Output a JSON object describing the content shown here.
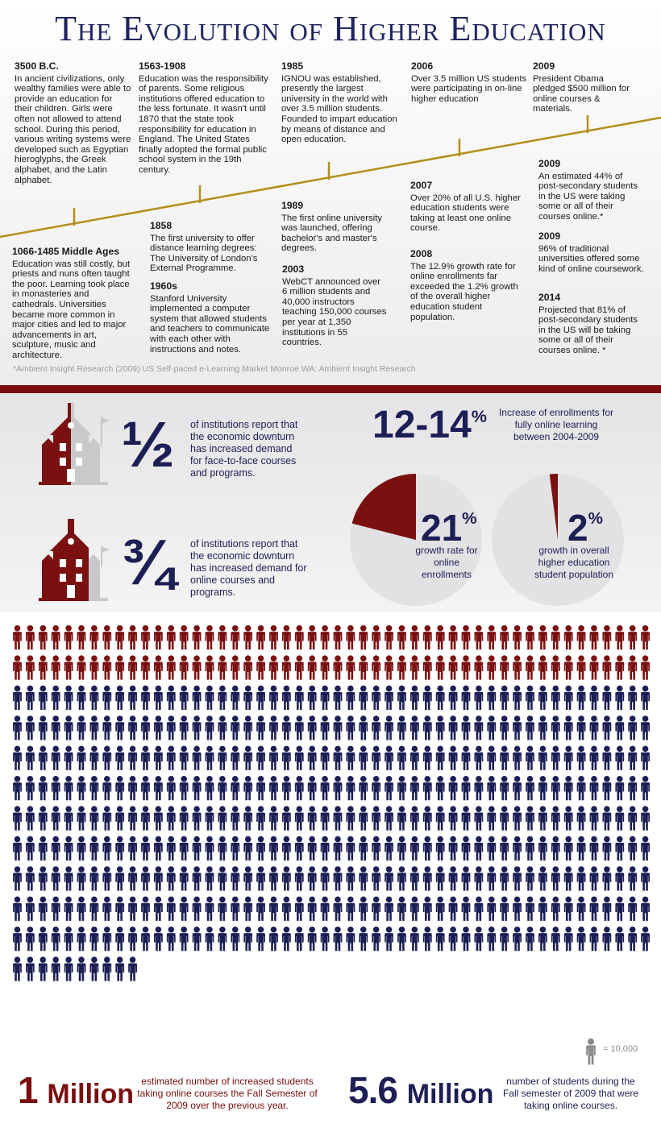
{
  "title": "The Evolution of Higher Education",
  "timeline": [
    {
      "year": "3500 B.C.",
      "text": "In ancient civilizations, only wealthy families were able to provide an education for their children.  Girls were often not allowed to attend school.  During this period, various writing systems were developed such as Egyptian hieroglyphs, the Greek alphabet, and the Latin alphabet."
    },
    {
      "year": "1563-1908",
      "text": "Education was the responsibility of parents.  Some religious institutions offered education to the less fortunate.  It wasn't until 1870 that the state took responsibility for education in England.  The United States finally adopted the formal public school system in the 19th century."
    },
    {
      "year": "1985",
      "text": "IGNOU was established, presently the largest university in the world with over 3.5 million students.  Founded to impart education by means of distance and open education."
    },
    {
      "year": "2006",
      "text": "Over 3.5 million US students were participating in on-line higher education"
    },
    {
      "year": "2009",
      "text": "President Obama pledged $500 million for online courses & materials."
    },
    {
      "year": "1066-1485 Middle Ages",
      "text": "Education was still costly, but priests and nuns often taught the poor. Learning took place in monasteries and cathedrals.  Universities became more common in major cities and led to major advancements in art, sculpture, music and architecture."
    },
    {
      "year": "1858",
      "text": "The first university to offer distance learning degrees: The University of London's External Programme."
    },
    {
      "year": "1960s",
      "text": "Stanford University implemented a computer system that allowed students and teachers to communicate with each other with instructions and notes."
    },
    {
      "year": "1989",
      "text": "The first online university was launched, offering bachelor's and master's degrees."
    },
    {
      "year": "2003",
      "text": "WebCT announced over 6 million students and 40,000 instructors teaching 150,000 courses per year at 1,350 institutions in 55 countries."
    },
    {
      "year": "2007",
      "text": "Over 20% of all U.S. higher education students were taking at least one online course."
    },
    {
      "year": "2008",
      "text": "The 12.9% growth rate for online enrollments far exceeded the 1.2% growth of the overall higher education student population."
    },
    {
      "year": "2009",
      "text": "An estimated 44% of post-secondary students in the US were taking some or all of their courses online.*"
    },
    {
      "year": "2009",
      "text": "96% of traditional universities offered some kind of online coursework."
    },
    {
      "year": "2014",
      "text": "Projected that 81% of post-secondary students in the US will be taking some or all of their courses online. *"
    }
  ],
  "footnote": "*Ambient Insight Research (2009) US Self-paced e-Learning Market Monroe WA: Ambient Insight Research",
  "stats": {
    "half": {
      "fraction": "½",
      "value": 0.5,
      "text": "of institutions report that the economic downturn has increased demand for face-to-face courses and programs."
    },
    "three_quarters": {
      "fraction": "¾",
      "value": 0.75,
      "text": "of institutions report that the economic downturn has increased demand for online courses and programs."
    },
    "enrollment_increase": {
      "value": "12-14",
      "unit": "%",
      "text": "Increase of enrollments for fully online learning between 2004-2009"
    },
    "online_growth": {
      "value": "21",
      "unit": "%",
      "fraction": 0.21,
      "text": "growth rate for online enrollments"
    },
    "overall_growth": {
      "value": "2",
      "unit": "%",
      "fraction": 0.02,
      "text": "growth in overall higher education student population"
    }
  },
  "people_chart": {
    "total_icons": 560,
    "red_icons": 100,
    "legend": "= 10,000",
    "colors": {
      "red": "#7a1010",
      "blue": "#1c1f55",
      "legend": "#8c8c8c"
    }
  },
  "bottom": {
    "left": {
      "number": "1",
      "unit": "Million",
      "text": "estimated number of increased students taking online courses the Fall Semester of 2009 over the previous year."
    },
    "right": {
      "number": "5.6",
      "unit": "Million",
      "text": "number of students during the Fall semester of 2009 that were taking online courses."
    }
  },
  "colors": {
    "navy": "#1c1f55",
    "maroon": "#7a0e0e",
    "gold": "#b38e1a",
    "pie_bg": "#e2e2e4"
  }
}
